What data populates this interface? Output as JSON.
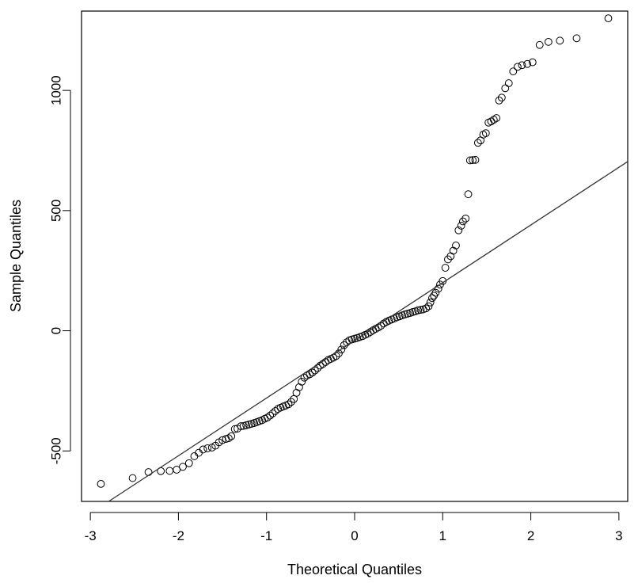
{
  "chart_data": {
    "type": "scatter",
    "title": "",
    "xlabel": "Theoretical Quantiles",
    "ylabel": "Sample Quantiles",
    "xlim": [
      -3.1,
      3.1
    ],
    "ylim": [
      -710,
      1330
    ],
    "x_ticks": [
      -3,
      -2,
      -1,
      0,
      1,
      2,
      3
    ],
    "y_ticks": [
      -500,
      0,
      500,
      1000
    ],
    "x_tick_labels": [
      "-3",
      "-2",
      "-1",
      "0",
      "1",
      "2",
      "3"
    ],
    "y_tick_labels": [
      "-500",
      "0",
      "500",
      "1000"
    ],
    "grid": false,
    "legend": "none",
    "reference_line": {
      "intercept": -40,
      "slope": 240
    },
    "series": [
      {
        "points": [
          [
            -2.88,
            -637
          ],
          [
            -2.52,
            -613
          ],
          [
            -2.34,
            -588
          ],
          [
            -2.2,
            -584
          ],
          [
            -2.1,
            -583
          ],
          [
            -2.02,
            -578
          ],
          [
            -1.95,
            -566
          ],
          [
            -1.88,
            -551
          ],
          [
            -1.82,
            -522
          ],
          [
            -1.77,
            -508
          ],
          [
            -1.72,
            -494
          ],
          [
            -1.67,
            -489
          ],
          [
            -1.62,
            -486
          ],
          [
            -1.58,
            -478
          ],
          [
            -1.54,
            -464
          ],
          [
            -1.5,
            -455
          ],
          [
            -1.46,
            -450
          ],
          [
            -1.43,
            -447
          ],
          [
            -1.4,
            -439
          ],
          [
            -1.36,
            -409
          ],
          [
            -1.33,
            -407
          ],
          [
            -1.29,
            -397
          ],
          [
            -1.26,
            -396
          ],
          [
            -1.23,
            -393
          ],
          [
            -1.2,
            -390
          ],
          [
            -1.17,
            -387
          ],
          [
            -1.14,
            -384
          ],
          [
            -1.11,
            -380
          ],
          [
            -1.08,
            -376
          ],
          [
            -1.05,
            -372
          ],
          [
            -1.02,
            -366
          ],
          [
            -0.99,
            -361
          ],
          [
            -0.96,
            -353
          ],
          [
            -0.93,
            -344
          ],
          [
            -0.9,
            -334
          ],
          [
            -0.87,
            -325
          ],
          [
            -0.84,
            -320
          ],
          [
            -0.81,
            -315
          ],
          [
            -0.78,
            -311
          ],
          [
            -0.75,
            -306
          ],
          [
            -0.72,
            -296
          ],
          [
            -0.69,
            -284
          ],
          [
            -0.66,
            -258
          ],
          [
            -0.63,
            -235
          ],
          [
            -0.6,
            -212
          ],
          [
            -0.57,
            -195
          ],
          [
            -0.54,
            -186
          ],
          [
            -0.51,
            -181
          ],
          [
            -0.48,
            -174
          ],
          [
            -0.45,
            -165
          ],
          [
            -0.42,
            -155
          ],
          [
            -0.39,
            -145
          ],
          [
            -0.36,
            -138
          ],
          [
            -0.33,
            -130
          ],
          [
            -0.3,
            -122
          ],
          [
            -0.27,
            -117
          ],
          [
            -0.24,
            -112
          ],
          [
            -0.21,
            -105
          ],
          [
            -0.18,
            -94
          ],
          [
            -0.15,
            -78
          ],
          [
            -0.12,
            -60
          ],
          [
            -0.09,
            -48
          ],
          [
            -0.06,
            -40
          ],
          [
            -0.03,
            -36
          ],
          [
            0.0,
            -33
          ],
          [
            0.03,
            -30
          ],
          [
            0.06,
            -26
          ],
          [
            0.09,
            -22
          ],
          [
            0.12,
            -17
          ],
          [
            0.15,
            -12
          ],
          [
            0.18,
            -5
          ],
          [
            0.21,
            2
          ],
          [
            0.24,
            8
          ],
          [
            0.27,
            14
          ],
          [
            0.3,
            21
          ],
          [
            0.33,
            30
          ],
          [
            0.36,
            37
          ],
          [
            0.39,
            42
          ],
          [
            0.42,
            47
          ],
          [
            0.45,
            51
          ],
          [
            0.48,
            56
          ],
          [
            0.51,
            60
          ],
          [
            0.54,
            64
          ],
          [
            0.57,
            68
          ],
          [
            0.6,
            71
          ],
          [
            0.63,
            74
          ],
          [
            0.66,
            78
          ],
          [
            0.69,
            81
          ],
          [
            0.72,
            85
          ],
          [
            0.75,
            87
          ],
          [
            0.78,
            89
          ],
          [
            0.81,
            93
          ],
          [
            0.84,
            102
          ],
          [
            0.86,
            118
          ],
          [
            0.88,
            136
          ],
          [
            0.9,
            146
          ],
          [
            0.92,
            158
          ],
          [
            0.95,
            175
          ],
          [
            0.97,
            192
          ],
          [
            1.0,
            207
          ],
          [
            1.03,
            262
          ],
          [
            1.06,
            297
          ],
          [
            1.09,
            310
          ],
          [
            1.12,
            333
          ],
          [
            1.15,
            355
          ],
          [
            1.18,
            418
          ],
          [
            1.21,
            437
          ],
          [
            1.23,
            455
          ],
          [
            1.26,
            467
          ],
          [
            1.29,
            568
          ],
          [
            1.31,
            709
          ],
          [
            1.34,
            710
          ],
          [
            1.37,
            711
          ],
          [
            1.4,
            782
          ],
          [
            1.43,
            792
          ],
          [
            1.46,
            816
          ],
          [
            1.49,
            822
          ],
          [
            1.52,
            866
          ],
          [
            1.55,
            871
          ],
          [
            1.58,
            878
          ],
          [
            1.61,
            885
          ],
          [
            1.64,
            958
          ],
          [
            1.67,
            970
          ],
          [
            1.71,
            1009
          ],
          [
            1.75,
            1030
          ],
          [
            1.8,
            1079
          ],
          [
            1.85,
            1098
          ],
          [
            1.9,
            1105
          ],
          [
            1.96,
            1110
          ],
          [
            2.02,
            1117
          ],
          [
            2.1,
            1189
          ],
          [
            2.2,
            1202
          ],
          [
            2.33,
            1207
          ],
          [
            2.52,
            1217
          ],
          [
            2.88,
            1300
          ]
        ]
      }
    ]
  }
}
